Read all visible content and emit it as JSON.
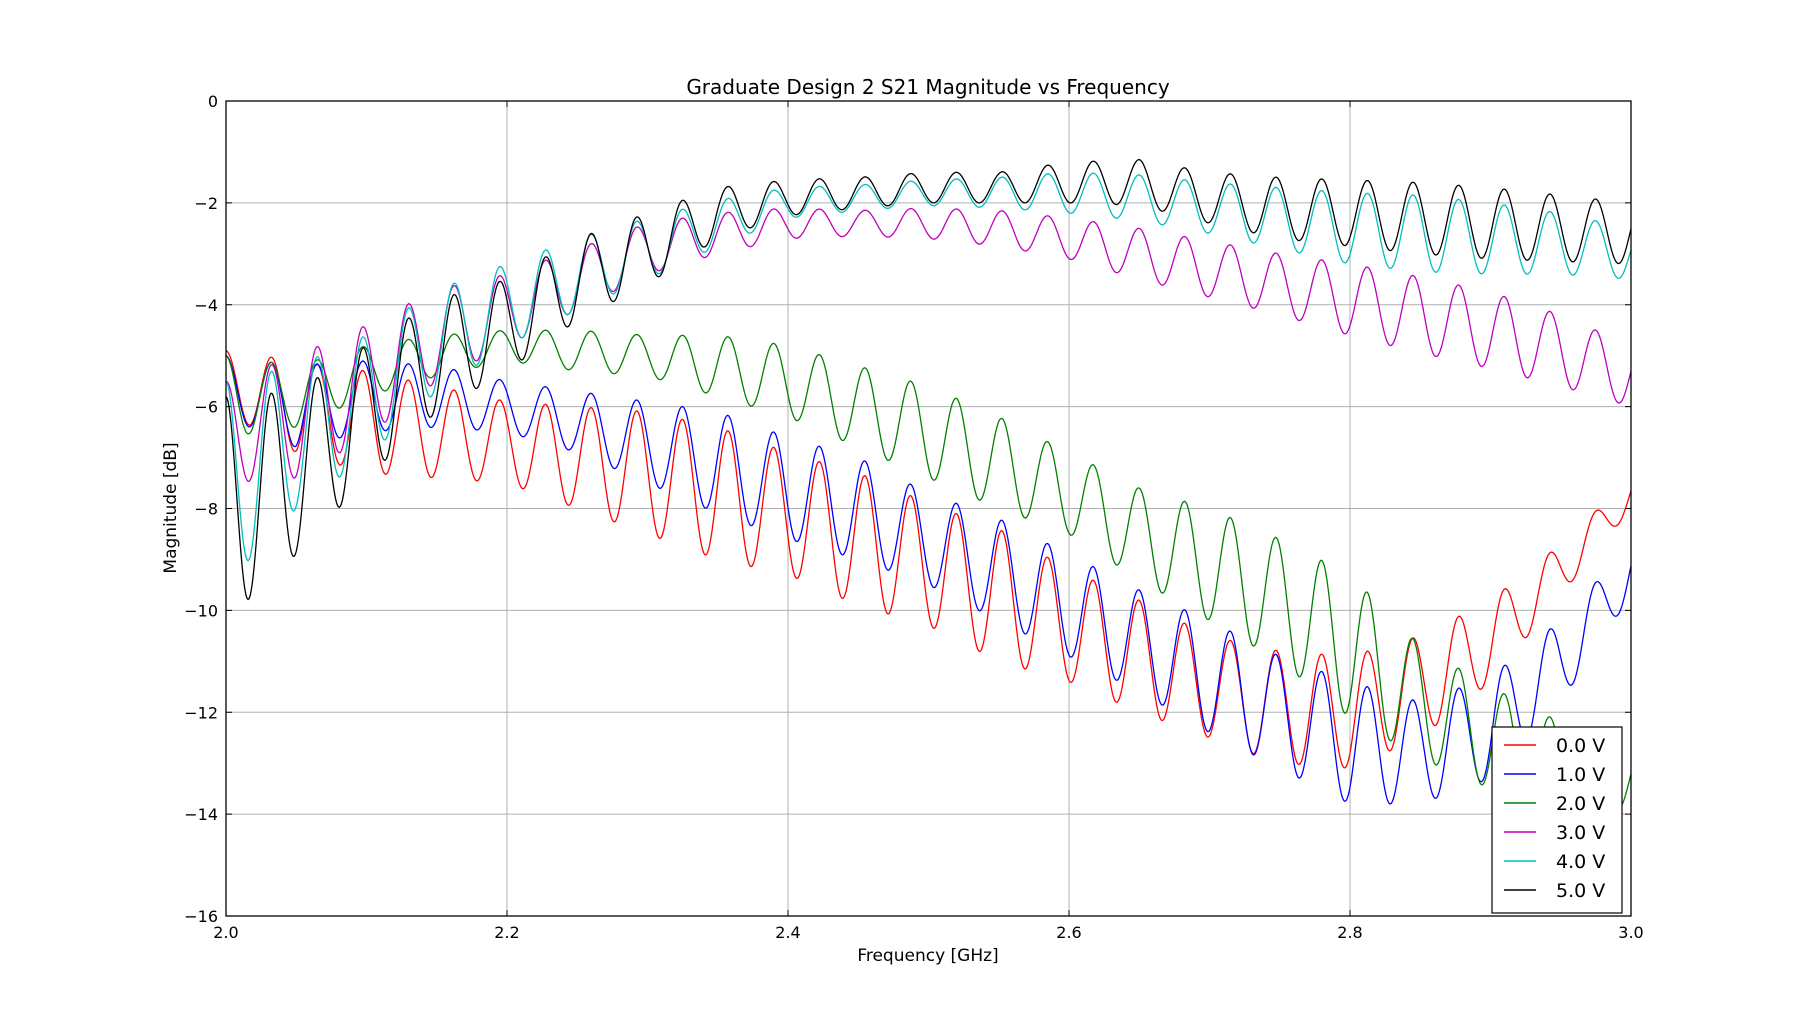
{
  "chart_data": {
    "type": "line",
    "title": "Graduate Design 2 S21 Magnitude vs Frequency",
    "xlabel": "Frequency [GHz]",
    "ylabel": "Magnitude [dB]",
    "xlim": [
      2.0,
      3.0
    ],
    "ylim": [
      -16,
      0
    ],
    "xticks": [
      "2.0",
      "2.2",
      "2.4",
      "2.6",
      "2.8",
      "3.0"
    ],
    "yticks": [
      "0",
      "−2",
      "−4",
      "−6",
      "−8",
      "−10",
      "−12",
      "−14",
      "−16"
    ],
    "grid": true,
    "legend_position": "bottom-right",
    "x": [
      2.0,
      2.05,
      2.1,
      2.15,
      2.2,
      2.25,
      2.3,
      2.35,
      2.4,
      2.45,
      2.5,
      2.55,
      2.6,
      2.65,
      2.7,
      2.75,
      2.8,
      2.85,
      2.9,
      2.95,
      3.0
    ],
    "series": [
      {
        "name": "0.0 V",
        "color": "#ff0000",
        "ripple_period": 0.0325,
        "ripple_amplitude": [
          0.6,
          0.9,
          1.0,
          0.9,
          0.8,
          1.0,
          1.2,
          1.3,
          1.2,
          1.3,
          1.2,
          1.3,
          1.1,
          1.1,
          1.0,
          1.1,
          1.1,
          1.0,
          0.8,
          0.5,
          0.3
        ],
        "values": [
          -5.5,
          -6.0,
          -6.3,
          -6.5,
          -6.7,
          -7.0,
          -7.3,
          -7.7,
          -8.1,
          -8.6,
          -9.1,
          -9.7,
          -10.3,
          -10.9,
          -11.5,
          -11.9,
          -12.0,
          -11.5,
          -10.6,
          -9.2,
          -7.7
        ]
      },
      {
        "name": "1.0 V",
        "color": "#0000ff",
        "ripple_period": 0.0325,
        "ripple_amplitude": [
          0.6,
          0.8,
          0.7,
          0.6,
          0.5,
          0.6,
          0.8,
          1.0,
          1.0,
          1.0,
          0.9,
          1.0,
          1.0,
          1.0,
          1.1,
          1.1,
          1.2,
          1.0,
          1.0,
          0.8,
          0.5
        ],
        "values": [
          -5.6,
          -6.0,
          -5.8,
          -5.8,
          -6.0,
          -6.3,
          -6.7,
          -7.1,
          -7.6,
          -8.0,
          -8.6,
          -9.2,
          -9.9,
          -10.6,
          -11.3,
          -12.0,
          -12.6,
          -12.8,
          -12.3,
          -11.0,
          -9.2
        ]
      },
      {
        "name": "2.0 V",
        "color": "#008000",
        "ripple_period": 0.0325,
        "ripple_amplitude": [
          0.8,
          0.6,
          0.5,
          0.4,
          0.3,
          0.4,
          0.4,
          0.6,
          0.7,
          0.8,
          0.9,
          0.9,
          0.8,
          0.9,
          1.1,
          1.2,
          1.4,
          1.1,
          1.0,
          0.8,
          0.6
        ],
        "values": [
          -5.8,
          -5.8,
          -5.3,
          -5.0,
          -4.8,
          -4.9,
          -5.0,
          -5.2,
          -5.5,
          -6.0,
          -6.5,
          -7.1,
          -7.7,
          -8.5,
          -9.1,
          -9.8,
          -10.7,
          -11.8,
          -12.5,
          -13.0,
          -13.3
        ]
      },
      {
        "name": "3.0 V",
        "color": "#bf00bf",
        "ripple_period": 0.0325,
        "ripple_amplitude": [
          1.0,
          1.2,
          1.1,
          0.9,
          0.7,
          0.6,
          0.5,
          0.4,
          0.3,
          0.25,
          0.3,
          0.35,
          0.4,
          0.5,
          0.55,
          0.6,
          0.7,
          0.75,
          0.75,
          0.7,
          0.6
        ],
        "values": [
          -6.5,
          -6.2,
          -5.5,
          -4.6,
          -4.1,
          -3.5,
          -2.9,
          -2.6,
          -2.4,
          -2.4,
          -2.4,
          -2.5,
          -2.7,
          -3.0,
          -3.3,
          -3.6,
          -3.9,
          -4.2,
          -4.5,
          -4.9,
          -5.4
        ]
      },
      {
        "name": "4.0 V",
        "color": "#00bfbf",
        "ripple_period": 0.0325,
        "ripple_amplitude": [
          2.0,
          1.4,
          1.2,
          1.0,
          0.8,
          0.7,
          0.6,
          0.45,
          0.3,
          0.25,
          0.25,
          0.3,
          0.4,
          0.45,
          0.5,
          0.6,
          0.7,
          0.75,
          0.7,
          0.6,
          0.5
        ],
        "values": [
          -7.5,
          -6.6,
          -5.8,
          -4.7,
          -4.0,
          -3.4,
          -2.9,
          -2.4,
          -2.0,
          -1.9,
          -1.8,
          -1.8,
          -1.8,
          -1.9,
          -2.1,
          -2.3,
          -2.5,
          -2.6,
          -2.7,
          -2.8,
          -3.0
        ]
      },
      {
        "name": "5.0 V",
        "color": "#000000",
        "ripple_period": 0.0325,
        "ripple_amplitude": [
          2.2,
          1.6,
          1.3,
          1.1,
          0.9,
          0.8,
          0.7,
          0.5,
          0.35,
          0.3,
          0.3,
          0.3,
          0.4,
          0.45,
          0.5,
          0.6,
          0.65,
          0.7,
          0.7,
          0.65,
          0.6
        ],
        "values": [
          -8.0,
          -7.3,
          -6.1,
          -5.0,
          -4.4,
          -3.5,
          -2.9,
          -2.2,
          -1.9,
          -1.8,
          -1.7,
          -1.7,
          -1.6,
          -1.6,
          -1.9,
          -2.1,
          -2.2,
          -2.3,
          -2.4,
          -2.5,
          -2.6
        ]
      }
    ]
  }
}
